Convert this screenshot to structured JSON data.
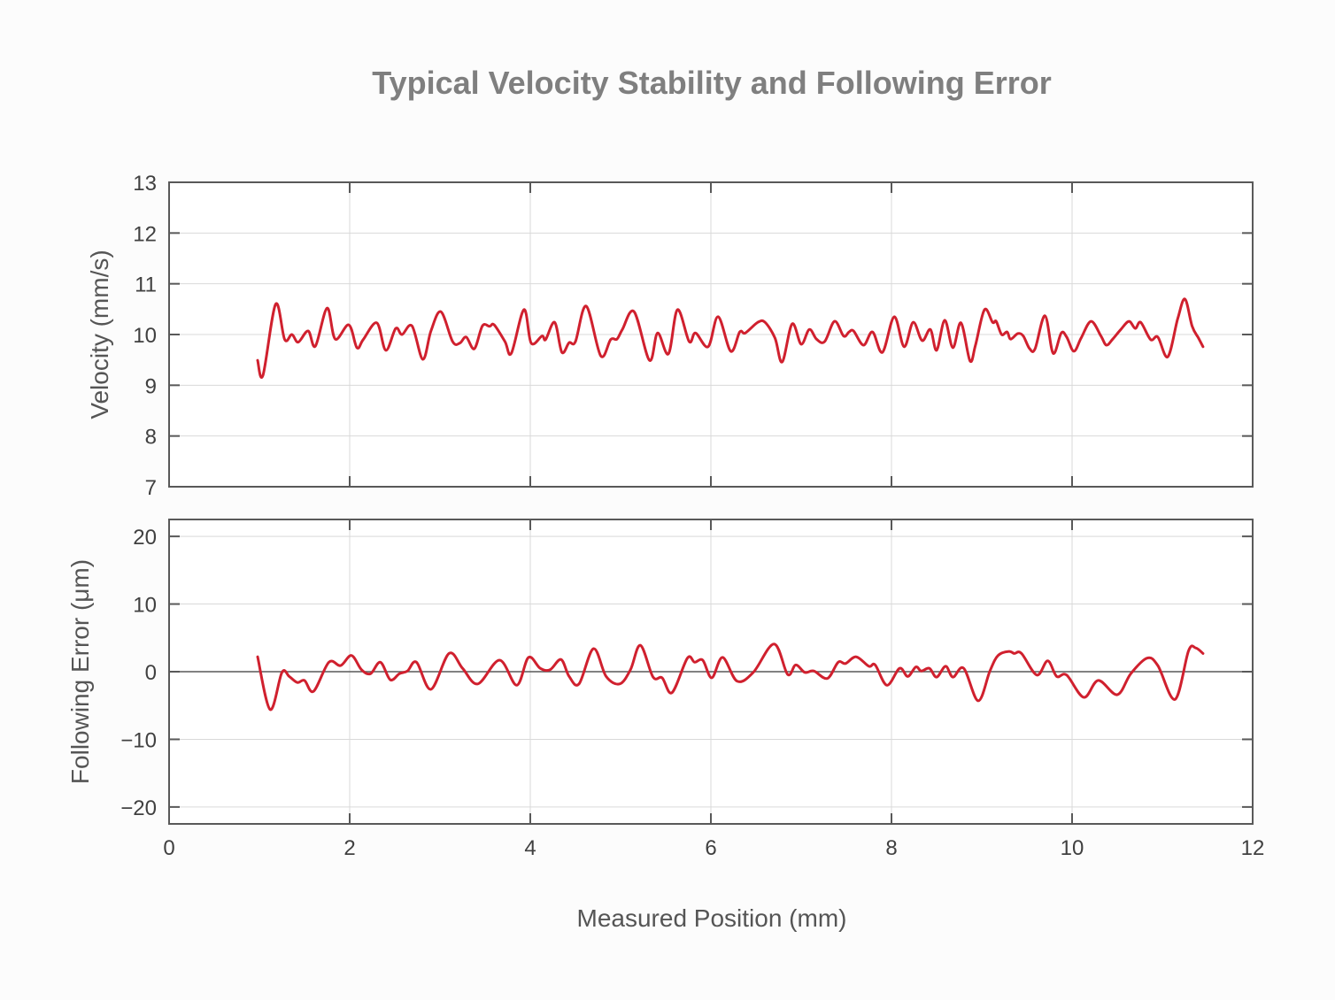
{
  "chart_data": [
    {
      "type": "line",
      "title": "Typical Velocity Stability and Following Error",
      "xlabel": "",
      "ylabel": "Velocity (mm/s)",
      "xlim": [
        0,
        12
      ],
      "ylim": [
        7,
        13
      ],
      "xticks": [
        0,
        2,
        4,
        6,
        8,
        10,
        12
      ],
      "yticks": [
        7,
        8,
        9,
        10,
        11,
        12,
        13
      ],
      "grid": true,
      "legend": null,
      "series": [
        {
          "name": "Velocity",
          "color": "#d0202e",
          "x": [
            0.98,
            1.04,
            1.18,
            1.28,
            1.36,
            1.43,
            1.54,
            1.62,
            1.75,
            1.84,
            1.99,
            2.08,
            2.15,
            2.3,
            2.4,
            2.51,
            2.58,
            2.69,
            2.81,
            2.9,
            3.01,
            3.14,
            3.22,
            3.29,
            3.38,
            3.47,
            3.55,
            3.6,
            3.72,
            3.79,
            3.93,
            4.01,
            4.13,
            4.17,
            4.27,
            4.35,
            4.43,
            4.5,
            4.62,
            4.78,
            4.89,
            4.96,
            5.02,
            5.15,
            5.32,
            5.41,
            5.53,
            5.63,
            5.76,
            5.83,
            5.97,
            6.08,
            6.22,
            6.32,
            6.38,
            6.52,
            6.6,
            6.71,
            6.79,
            6.9,
            7.0,
            7.09,
            7.17,
            7.26,
            7.37,
            7.47,
            7.53,
            7.58,
            7.69,
            7.79,
            7.9,
            8.03,
            8.14,
            8.24,
            8.34,
            8.43,
            8.5,
            8.59,
            8.68,
            8.77,
            8.87,
            8.93,
            9.03,
            9.12,
            9.16,
            9.22,
            9.28,
            9.32,
            9.4,
            9.46,
            9.53,
            9.59,
            9.7,
            9.79,
            9.88,
            9.94,
            10.02,
            10.1,
            10.21,
            10.32,
            10.38,
            10.45,
            10.54,
            10.63,
            10.7,
            10.76,
            10.87,
            10.95,
            11.06,
            11.17,
            11.25,
            11.33,
            11.4,
            11.45
          ],
          "y": [
            9.49,
            9.2,
            10.6,
            9.9,
            10.0,
            9.85,
            10.07,
            9.77,
            10.52,
            9.91,
            10.19,
            9.74,
            9.9,
            10.23,
            9.69,
            10.12,
            10.0,
            10.17,
            9.51,
            10.07,
            10.45,
            9.86,
            9.83,
            9.95,
            9.72,
            10.17,
            10.16,
            10.19,
            9.86,
            9.63,
            10.49,
            9.83,
            9.97,
            9.9,
            10.24,
            9.65,
            9.84,
            9.86,
            10.56,
            9.58,
            9.9,
            9.91,
            10.1,
            10.45,
            9.49,
            10.03,
            9.62,
            10.49,
            9.86,
            10.03,
            9.76,
            10.35,
            9.67,
            10.05,
            10.03,
            10.24,
            10.24,
            9.93,
            9.46,
            10.21,
            9.81,
            10.1,
            9.91,
            9.86,
            10.26,
            9.97,
            10.05,
            10.07,
            9.79,
            10.05,
            9.65,
            10.35,
            9.76,
            10.24,
            9.88,
            10.1,
            9.69,
            10.28,
            9.74,
            10.23,
            9.48,
            9.79,
            10.49,
            10.24,
            10.26,
            10.0,
            10.05,
            9.91,
            10.02,
            9.97,
            9.72,
            9.72,
            10.37,
            9.63,
            10.03,
            9.95,
            9.67,
            9.93,
            10.26,
            9.97,
            9.79,
            9.91,
            10.1,
            10.26,
            10.12,
            10.24,
            9.9,
            9.95,
            9.56,
            10.31,
            10.7,
            10.16,
            9.93,
            9.76
          ]
        }
      ]
    },
    {
      "type": "line",
      "title": "",
      "xlabel": "Measured Position (mm)",
      "ylabel": "Following Error (μm)",
      "xlim": [
        0,
        12
      ],
      "ylim": [
        -22.5,
        22.5
      ],
      "xticks": [
        0,
        2,
        4,
        6,
        8,
        10,
        12
      ],
      "yticks": [
        -20,
        -10,
        0,
        10,
        20
      ],
      "grid": true,
      "zero_line": true,
      "legend": null,
      "series": [
        {
          "name": "Following Error",
          "color": "#d0202e",
          "x": [
            0.98,
            1.12,
            1.25,
            1.33,
            1.42,
            1.5,
            1.6,
            1.77,
            1.9,
            2.02,
            2.13,
            2.23,
            2.34,
            2.45,
            2.55,
            2.64,
            2.74,
            2.9,
            3.1,
            3.25,
            3.42,
            3.66,
            3.85,
            3.98,
            4.11,
            4.22,
            4.34,
            4.43,
            4.54,
            4.7,
            4.84,
            4.99,
            5.11,
            5.22,
            5.36,
            5.46,
            5.57,
            5.74,
            5.82,
            5.91,
            6.01,
            6.13,
            6.29,
            6.47,
            6.7,
            6.85,
            6.94,
            7.04,
            7.14,
            7.29,
            7.41,
            7.49,
            7.61,
            7.75,
            7.82,
            7.95,
            8.09,
            8.18,
            8.27,
            8.33,
            8.42,
            8.5,
            8.6,
            8.68,
            8.8,
            8.96,
            9.09,
            9.18,
            9.3,
            9.36,
            9.44,
            9.61,
            9.73,
            9.83,
            9.94,
            10.13,
            10.29,
            10.5,
            10.65,
            10.83,
            10.95,
            11.14,
            11.29,
            11.37,
            11.45
          ],
          "y": [
            2.2,
            -5.6,
            -0.1,
            -0.7,
            -1.6,
            -1.3,
            -2.9,
            1.4,
            0.9,
            2.4,
            0.3,
            -0.3,
            1.4,
            -1.2,
            -0.3,
            0.1,
            1.4,
            -2.6,
            2.7,
            0.5,
            -1.8,
            1.7,
            -2.0,
            2.1,
            0.5,
            0.3,
            1.8,
            -0.7,
            -1.8,
            3.4,
            -0.7,
            -1.8,
            0.3,
            3.9,
            -0.8,
            -0.9,
            -3.1,
            2.0,
            1.4,
            1.7,
            -0.9,
            2.1,
            -1.4,
            -0.1,
            4.1,
            -0.4,
            1.0,
            -0.1,
            0.1,
            -1.0,
            1.4,
            1.2,
            2.2,
            0.8,
            1.0,
            -2.0,
            0.5,
            -0.7,
            0.7,
            0.1,
            0.5,
            -0.8,
            0.8,
            -0.8,
            0.5,
            -4.3,
            0.1,
            2.4,
            3.0,
            2.7,
            2.7,
            -0.5,
            1.6,
            -0.7,
            -0.5,
            -3.8,
            -1.3,
            -3.4,
            -0.3,
            2.0,
            0.9,
            -4.1,
            3.1,
            3.5,
            2.7
          ]
        }
      ]
    }
  ],
  "figure": {
    "title": "Typical Velocity Stability and Following Error",
    "top_panel": {
      "ylabel": "Velocity (mm/s)",
      "ytick_labels": [
        "7",
        "8",
        "9",
        "10",
        "11",
        "12",
        "13"
      ]
    },
    "bottom_panel": {
      "ylabel": "Following Error (μm)",
      "ytick_labels": [
        "−20",
        "−10",
        "0",
        "10",
        "20"
      ],
      "xtick_labels": [
        "0",
        "2",
        "4",
        "6",
        "8",
        "10",
        "12"
      ],
      "xlabel": "Measured Position (mm)"
    },
    "colors": {
      "line": "#d0202e",
      "title": "#7f7f7f",
      "axis": "#595959",
      "grid": "#d9d9d9",
      "background": "#fcfcfc"
    }
  }
}
